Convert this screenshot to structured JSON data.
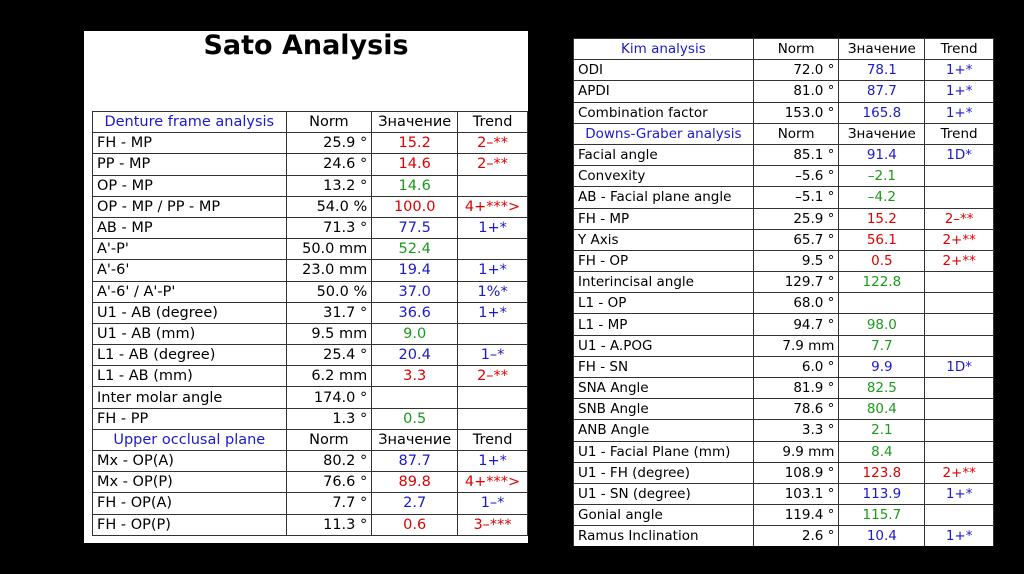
{
  "left": {
    "title": "Sato Analysis",
    "sections": [
      {
        "header": [
          "Denture frame analysis",
          "Norm",
          "Значение",
          "Trend"
        ],
        "rows": [
          {
            "name": "FH - MP",
            "norm": "25.9 °",
            "value": "15.2",
            "vc": "red",
            "trend": "2–**",
            "tc": "red"
          },
          {
            "name": "PP - MP",
            "norm": "24.6 °",
            "value": "14.6",
            "vc": "red",
            "trend": "2–**",
            "tc": "red"
          },
          {
            "name": "OP - MP",
            "norm": "13.2 °",
            "value": "14.6",
            "vc": "green",
            "trend": "",
            "tc": "black"
          },
          {
            "name": "OP - MP / PP - MP",
            "norm": "54.0 %",
            "value": "100.0",
            "vc": "red",
            "trend": "4+***>",
            "tc": "red"
          },
          {
            "name": "AB - MP",
            "norm": "71.3 °",
            "value": "77.5",
            "vc": "blue",
            "trend": "1+*",
            "tc": "blue"
          },
          {
            "name": "A'-P'",
            "norm": "50.0 mm",
            "value": "52.4",
            "vc": "green",
            "trend": "",
            "tc": "black"
          },
          {
            "name": "A'-6'",
            "norm": "23.0 mm",
            "value": "19.4",
            "vc": "blue",
            "trend": "1+*",
            "tc": "blue"
          },
          {
            "name": "A'-6' / A'-P'",
            "norm": "50.0 %",
            "value": "37.0",
            "vc": "blue",
            "trend": "1%*",
            "tc": "blue"
          },
          {
            "name": "U1 - AB (degree)",
            "norm": "31.7 °",
            "value": "36.6",
            "vc": "blue",
            "trend": "1+*",
            "tc": "blue"
          },
          {
            "name": "U1 - AB (mm)",
            "norm": "9.5 mm",
            "value": "9.0",
            "vc": "green",
            "trend": "",
            "tc": "black"
          },
          {
            "name": "L1 - AB (degree)",
            "norm": "25.4 °",
            "value": "20.4",
            "vc": "blue",
            "trend": "1–*",
            "tc": "blue"
          },
          {
            "name": "L1 - AB (mm)",
            "norm": "6.2 mm",
            "value": "3.3",
            "vc": "red",
            "trend": "2–**",
            "tc": "red"
          },
          {
            "name": "Inter molar angle",
            "norm": "174.0 °",
            "value": "",
            "vc": "black",
            "trend": "",
            "tc": "black"
          },
          {
            "name": "FH - PP",
            "norm": "1.3 °",
            "value": "0.5",
            "vc": "green",
            "trend": "",
            "tc": "black"
          }
        ]
      },
      {
        "header": [
          "Upper occlusal plane",
          "Norm",
          "Значение",
          "Trend"
        ],
        "rows": [
          {
            "name": "Mx - OP(A)",
            "norm": "80.2 °",
            "value": "87.7",
            "vc": "blue",
            "trend": "1+*",
            "tc": "blue"
          },
          {
            "name": "Mx - OP(P)",
            "norm": "76.6 °",
            "value": "89.8",
            "vc": "red",
            "trend": "4+***>",
            "tc": "red"
          },
          {
            "name": "FH - OP(A)",
            "norm": "7.7 °",
            "value": "2.7",
            "vc": "blue",
            "trend": "1–*",
            "tc": "blue"
          },
          {
            "name": "FH - OP(P)",
            "norm": "11.3 °",
            "value": "0.6",
            "vc": "red",
            "trend": "3–***",
            "tc": "red"
          }
        ]
      }
    ]
  },
  "right": {
    "sections": [
      {
        "header": [
          "Kim analysis",
          "Norm",
          "Значение",
          "Trend"
        ],
        "rows": [
          {
            "name": "ODI",
            "norm": "72.0 °",
            "value": "78.1",
            "vc": "blue",
            "trend": "1+*",
            "tc": "blue"
          },
          {
            "name": "APDI",
            "norm": "81.0 °",
            "value": "87.7",
            "vc": "blue",
            "trend": "1+*",
            "tc": "blue"
          },
          {
            "name": "Combination factor",
            "norm": "153.0 °",
            "value": "165.8",
            "vc": "blue",
            "trend": "1+*",
            "tc": "blue"
          }
        ]
      },
      {
        "header": [
          "Downs-Graber analysis",
          "Norm",
          "Значение",
          "Trend"
        ],
        "rows": [
          {
            "name": "Facial angle",
            "norm": "85.1 °",
            "value": "91.4",
            "vc": "blue",
            "trend": "1D*",
            "tc": "blue"
          },
          {
            "name": "Convexity",
            "norm": "–5.6 °",
            "value": "–2.1",
            "vc": "green",
            "trend": "",
            "tc": "black"
          },
          {
            "name": "AB - Facial plane angle",
            "norm": "–5.1 °",
            "value": "–4.2",
            "vc": "green",
            "trend": "",
            "tc": "black"
          },
          {
            "name": "FH - MP",
            "norm": "25.9 °",
            "value": "15.2",
            "vc": "red",
            "trend": "2–**",
            "tc": "red"
          },
          {
            "name": "Y Axis",
            "norm": "65.7 °",
            "value": "56.1",
            "vc": "red",
            "trend": "2+**",
            "tc": "red"
          },
          {
            "name": "FH - OP",
            "norm": "9.5 °",
            "value": "0.5",
            "vc": "red",
            "trend": "2+**",
            "tc": "red"
          },
          {
            "name": "Interincisal angle",
            "norm": "129.7 °",
            "value": "122.8",
            "vc": "green",
            "trend": "",
            "tc": "black"
          },
          {
            "name": "L1 - OP",
            "norm": "68.0 °",
            "value": "",
            "vc": "black",
            "trend": "",
            "tc": "black"
          },
          {
            "name": "L1 - MP",
            "norm": "94.7 °",
            "value": "98.0",
            "vc": "green",
            "trend": "",
            "tc": "black"
          },
          {
            "name": "U1 - A.POG",
            "norm": "7.9 mm",
            "value": "7.7",
            "vc": "green",
            "trend": "",
            "tc": "black"
          },
          {
            "name": "FH - SN",
            "norm": "6.0 °",
            "value": "9.9",
            "vc": "blue",
            "trend": "1D*",
            "tc": "blue"
          },
          {
            "name": "SNA Angle",
            "norm": "81.9 °",
            "value": "82.5",
            "vc": "green",
            "trend": "",
            "tc": "black"
          },
          {
            "name": "SNB Angle",
            "norm": "78.6 °",
            "value": "80.4",
            "vc": "green",
            "trend": "",
            "tc": "black"
          },
          {
            "name": "ANB Angle",
            "norm": "3.3 °",
            "value": "2.1",
            "vc": "green",
            "trend": "",
            "tc": "black"
          },
          {
            "name": "U1 - Facial Plane (mm)",
            "norm": "9.9 mm",
            "value": "8.4",
            "vc": "green",
            "trend": "",
            "tc": "black"
          },
          {
            "name": "U1 - FH (degree)",
            "norm": "108.9 °",
            "value": "123.8",
            "vc": "red",
            "trend": "2+**",
            "tc": "red"
          },
          {
            "name": "U1 - SN (degree)",
            "norm": "103.1 °",
            "value": "113.9",
            "vc": "blue",
            "trend": "1+*",
            "tc": "blue"
          },
          {
            "name": "Gonial angle",
            "norm": "119.4 °",
            "value": "115.7",
            "vc": "green",
            "trend": "",
            "tc": "black"
          },
          {
            "name": "Ramus Inclination",
            "norm": "2.6 °",
            "value": "10.4",
            "vc": "blue",
            "trend": "1+*",
            "tc": "blue"
          }
        ]
      }
    ]
  }
}
